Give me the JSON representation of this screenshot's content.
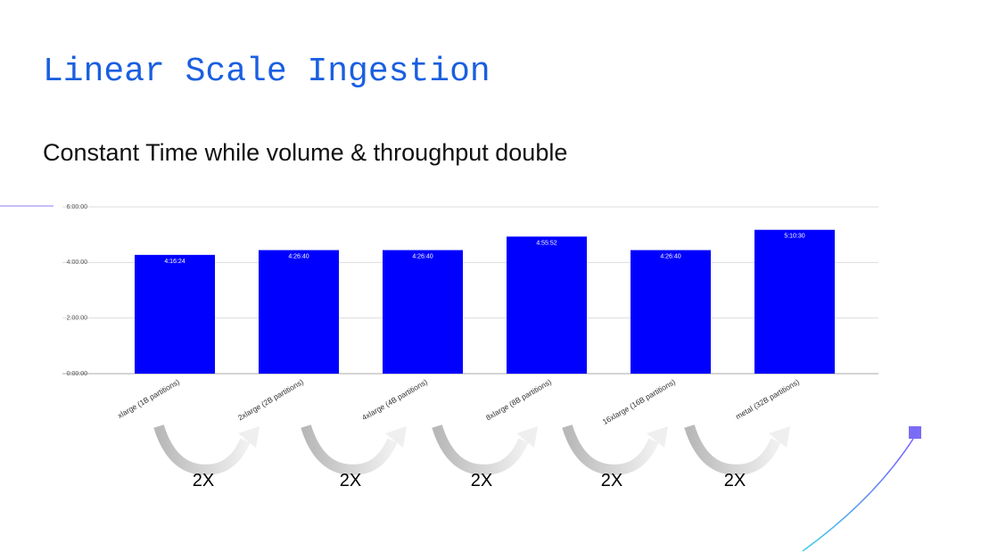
{
  "chart_data": {
    "type": "bar",
    "title": "Linear Scale Ingestion",
    "subtitle": "Constant Time while volume & throughput double",
    "categories": [
      "xlarge (1B partitions)",
      "2xlarge (2B partitions)",
      "4xlarge (4B partitions)",
      "8xlarge (8B partitions)",
      "16xlarge (16B partitions)",
      "metal (32B partitions)"
    ],
    "values": [
      15384,
      16000,
      16000,
      17752,
      16000,
      18630
    ],
    "value_labels": [
      "4:16:24",
      "4:26:40",
      "4:26:40",
      "4:55:52",
      "4:26:40",
      "5:10:30"
    ],
    "color": "#0000ff",
    "ylim": [
      0,
      21600
    ],
    "yticks": [
      {
        "value": 0,
        "label": "0:00:00"
      },
      {
        "value": 7200,
        "label": "2:00:00"
      },
      {
        "value": 14400,
        "label": "4:00:00"
      },
      {
        "value": 21600,
        "label": "6:00:00"
      }
    ],
    "grid": true,
    "annotations": [
      "2X",
      "2X",
      "2X",
      "2X",
      "2X"
    ]
  }
}
